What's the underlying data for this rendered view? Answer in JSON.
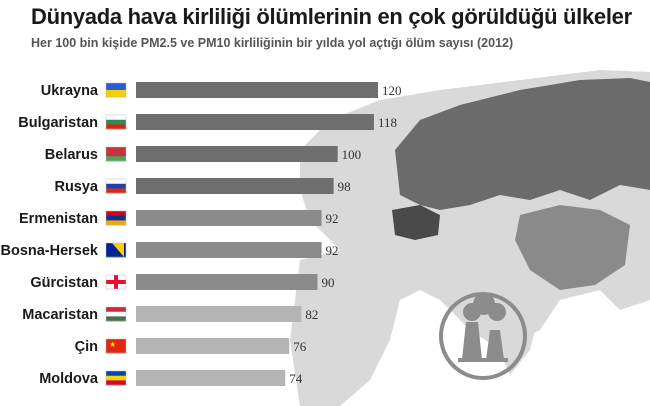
{
  "title": "Dünyada hava kirliliği ölümlerinin en çok görüldüğü ülkeler",
  "subtitle": "Her 100 bin kişide PM2.5 ve PM10 kirliliğinin bir yılda yol açtığı ölüm sayısı (2012)",
  "colors": {
    "bar_dark": "#6e6e6e",
    "bar_mid": "#8a8a8a",
    "bar_light": "#b4b4b4",
    "map_land": "#d9d9d9",
    "map_dark": "#6b6b6b",
    "map_darker": "#4a4a4a",
    "icon": "#8c8c8c"
  },
  "icons": [
    "factory-pollution-icon"
  ],
  "chart_data": {
    "type": "bar",
    "orientation": "horizontal",
    "title": "Dünyada hava kirliliği ölümlerinin en çok görüldüğü ülkeler",
    "subtitle": "Her 100 bin kişide PM2.5 ve PM10 kirliliğinin bir yılda yol açtığı ölüm sayısı (2012)",
    "categories": [
      "Ukrayna",
      "Bulgaristan",
      "Belarus",
      "Rusya",
      "Ermenistan",
      "Bosna-Hersek",
      "Gürcistan",
      "Macaristan",
      "Çin",
      "Moldova"
    ],
    "values": [
      120,
      118,
      100,
      98,
      92,
      92,
      90,
      82,
      76,
      74
    ],
    "flags": [
      "ua-flag",
      "bg-flag",
      "by-flag",
      "ru-flag",
      "am-flag",
      "ba-flag",
      "ge-flag",
      "hu-flag",
      "cn-flag",
      "md-flag"
    ],
    "xlim": [
      0,
      120
    ],
    "grid": false,
    "legend": "none"
  }
}
